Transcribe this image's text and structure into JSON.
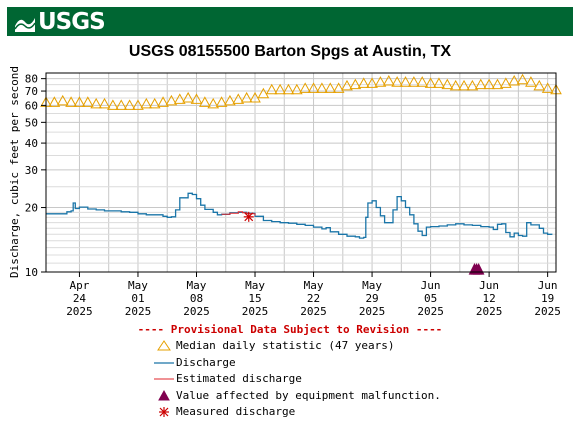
{
  "header": {
    "logo_text": "USGS"
  },
  "chart_data": {
    "type": "line",
    "title": "USGS 08155500 Barton Spgs at Austin, TX",
    "ylabel": "Discharge, cubic feet per second",
    "yscale": "log",
    "ylim": [
      10,
      85
    ],
    "yticks": [
      10,
      20,
      30,
      40,
      50,
      60,
      70,
      80
    ],
    "xlim": [
      "2025-04-20",
      "2025-06-20"
    ],
    "xticks": [
      {
        "date": "2025-04-24",
        "label": [
          "Apr",
          "24",
          "2025"
        ]
      },
      {
        "date": "2025-05-01",
        "label": [
          "May",
          "01",
          "2025"
        ]
      },
      {
        "date": "2025-05-08",
        "label": [
          "May",
          "08",
          "2025"
        ]
      },
      {
        "date": "2025-05-15",
        "label": [
          "May",
          "15",
          "2025"
        ]
      },
      {
        "date": "2025-05-22",
        "label": [
          "May",
          "22",
          "2025"
        ]
      },
      {
        "date": "2025-05-29",
        "label": [
          "May",
          "29",
          "2025"
        ]
      },
      {
        "date": "2025-06-05",
        "label": [
          "Jun",
          "05",
          "2025"
        ]
      },
      {
        "date": "2025-06-12",
        "label": [
          "Jun",
          "12",
          "2025"
        ]
      },
      {
        "date": "2025-06-19",
        "label": [
          "Jun",
          "19",
          "2025"
        ]
      }
    ],
    "grid": true,
    "colors": {
      "median": "#e6a000",
      "discharge": "#1a75a8",
      "estimated": "#e0262b",
      "malfunction": "#800050",
      "measured": "#cc0000"
    },
    "series": [
      {
        "name": "Discharge",
        "points": [
          [
            "2025-04-20",
            18.7
          ],
          [
            "2025-04-22",
            18.7
          ],
          [
            "2025-04-22T12",
            19.1
          ],
          [
            "2025-04-23",
            19.3
          ],
          [
            "2025-04-23T06",
            21.0
          ],
          [
            "2025-04-23T12",
            19.8
          ],
          [
            "2025-04-24",
            20.1
          ],
          [
            "2025-04-25",
            19.7
          ],
          [
            "2025-04-26",
            19.5
          ],
          [
            "2025-04-27",
            19.3
          ],
          [
            "2025-04-28",
            19.3
          ],
          [
            "2025-04-29",
            19.1
          ],
          [
            "2025-04-30",
            19.0
          ],
          [
            "2025-05-01",
            18.7
          ],
          [
            "2025-05-02",
            18.5
          ],
          [
            "2025-05-03",
            18.5
          ],
          [
            "2025-05-04",
            18.2
          ],
          [
            "2025-05-04T12",
            18.0
          ],
          [
            "2025-05-05",
            18.1
          ],
          [
            "2025-05-05T12",
            19.5
          ],
          [
            "2025-05-06",
            22.2
          ],
          [
            "2025-05-07",
            23.3
          ],
          [
            "2025-05-07T12",
            23.0
          ],
          [
            "2025-05-08",
            22.0
          ],
          [
            "2025-05-08T12",
            20.5
          ],
          [
            "2025-05-09",
            19.6
          ],
          [
            "2025-05-10",
            19.0
          ],
          [
            "2025-05-10T12",
            18.5
          ],
          [
            "2025-05-11",
            18.6
          ],
          [
            "2025-05-12",
            18.9
          ],
          [
            "2025-05-13",
            19.0
          ],
          [
            "2025-05-14",
            18.8
          ],
          [
            "2025-05-15",
            18.2
          ],
          [
            "2025-05-16",
            17.4
          ],
          [
            "2025-05-17",
            17.2
          ],
          [
            "2025-05-18",
            17.0
          ],
          [
            "2025-05-19",
            16.9
          ],
          [
            "2025-05-20",
            16.7
          ],
          [
            "2025-05-21",
            16.5
          ],
          [
            "2025-05-22",
            16.2
          ],
          [
            "2025-05-23",
            15.9
          ],
          [
            "2025-05-23T12",
            16.1
          ],
          [
            "2025-05-24",
            15.4
          ],
          [
            "2025-05-25",
            15.0
          ],
          [
            "2025-05-26",
            14.7
          ],
          [
            "2025-05-27",
            14.6
          ],
          [
            "2025-05-27T12",
            14.4
          ],
          [
            "2025-05-28",
            14.5
          ],
          [
            "2025-05-28T06",
            18.0
          ],
          [
            "2025-05-28T12",
            21.0
          ],
          [
            "2025-05-29",
            21.5
          ],
          [
            "2025-05-29T12",
            20.0
          ],
          [
            "2025-05-30",
            18.3
          ],
          [
            "2025-05-30T12",
            17.0
          ],
          [
            "2025-05-31",
            17.0
          ],
          [
            "2025-05-31T12",
            19.5
          ],
          [
            "2025-06-01",
            22.5
          ],
          [
            "2025-06-01T12",
            21.5
          ],
          [
            "2025-06-02",
            20.0
          ],
          [
            "2025-06-02T12",
            18.5
          ],
          [
            "2025-06-03",
            16.8
          ],
          [
            "2025-06-03T12",
            15.5
          ],
          [
            "2025-06-04",
            14.8
          ],
          [
            "2025-06-04T12",
            16.2
          ],
          [
            "2025-06-05",
            16.3
          ],
          [
            "2025-06-06",
            16.4
          ],
          [
            "2025-06-07",
            16.6
          ],
          [
            "2025-06-08",
            16.8
          ],
          [
            "2025-06-09",
            16.6
          ],
          [
            "2025-06-10",
            16.5
          ],
          [
            "2025-06-11",
            16.3
          ],
          [
            "2025-06-12",
            16.2
          ],
          [
            "2025-06-12T12",
            15.8
          ],
          [
            "2025-06-13",
            16.7
          ],
          [
            "2025-06-13T12",
            16.8
          ],
          [
            "2025-06-14",
            15.3
          ],
          [
            "2025-06-14T12",
            14.6
          ],
          [
            "2025-06-15",
            15.2
          ],
          [
            "2025-06-15T12",
            14.8
          ],
          [
            "2025-06-16",
            14.7
          ],
          [
            "2025-06-16T12",
            17.0
          ],
          [
            "2025-06-17",
            16.6
          ],
          [
            "2025-06-18",
            16.0
          ],
          [
            "2025-06-18T12",
            15.2
          ],
          [
            "2025-06-19",
            15.0
          ],
          [
            "2025-06-19T12",
            14.9
          ]
        ]
      },
      {
        "name": "Estimated discharge",
        "points": [
          [
            "2025-05-11",
            18.6
          ],
          [
            "2025-05-12",
            18.8
          ],
          [
            "2025-05-13",
            19.1
          ],
          [
            "2025-05-13T12",
            18.9
          ],
          [
            "2025-05-14",
            18.7
          ],
          [
            "2025-05-15",
            18.3
          ]
        ]
      },
      {
        "name": "Median daily statistic (47 years)",
        "values": [
          [
            "2025-04-20",
            62
          ],
          [
            "2025-04-21",
            62
          ],
          [
            "2025-04-22",
            63
          ],
          [
            "2025-04-23",
            62
          ],
          [
            "2025-04-24",
            62
          ],
          [
            "2025-04-25",
            62
          ],
          [
            "2025-04-26",
            61
          ],
          [
            "2025-04-27",
            61
          ],
          [
            "2025-04-28",
            60
          ],
          [
            "2025-04-29",
            60
          ],
          [
            "2025-04-30",
            60
          ],
          [
            "2025-05-01",
            60
          ],
          [
            "2025-05-02",
            61
          ],
          [
            "2025-05-03",
            61
          ],
          [
            "2025-05-04",
            62
          ],
          [
            "2025-05-05",
            63
          ],
          [
            "2025-05-06",
            64
          ],
          [
            "2025-05-07",
            65
          ],
          [
            "2025-05-08",
            64
          ],
          [
            "2025-05-09",
            62
          ],
          [
            "2025-05-10",
            61
          ],
          [
            "2025-05-11",
            62
          ],
          [
            "2025-05-12",
            63
          ],
          [
            "2025-05-13",
            64
          ],
          [
            "2025-05-14",
            65
          ],
          [
            "2025-05-15",
            65
          ],
          [
            "2025-05-16",
            68
          ],
          [
            "2025-05-17",
            71
          ],
          [
            "2025-05-18",
            71
          ],
          [
            "2025-05-19",
            71
          ],
          [
            "2025-05-20",
            71
          ],
          [
            "2025-05-21",
            72
          ],
          [
            "2025-05-22",
            72
          ],
          [
            "2025-05-23",
            72
          ],
          [
            "2025-05-24",
            72
          ],
          [
            "2025-05-25",
            72
          ],
          [
            "2025-05-26",
            74
          ],
          [
            "2025-05-27",
            75
          ],
          [
            "2025-05-28",
            76
          ],
          [
            "2025-05-29",
            76
          ],
          [
            "2025-05-30",
            77
          ],
          [
            "2025-05-31",
            78
          ],
          [
            "2025-06-01",
            77
          ],
          [
            "2025-06-02",
            77
          ],
          [
            "2025-06-03",
            77
          ],
          [
            "2025-06-04",
            77
          ],
          [
            "2025-06-05",
            76
          ],
          [
            "2025-06-06",
            76
          ],
          [
            "2025-06-07",
            75
          ],
          [
            "2025-06-08",
            74
          ],
          [
            "2025-06-09",
            74
          ],
          [
            "2025-06-10",
            74
          ],
          [
            "2025-06-11",
            75
          ],
          [
            "2025-06-12",
            75
          ],
          [
            "2025-06-13",
            75
          ],
          [
            "2025-06-14",
            76
          ],
          [
            "2025-06-15",
            78
          ],
          [
            "2025-06-16",
            79
          ],
          [
            "2025-06-17",
            77
          ],
          [
            "2025-06-18",
            74
          ],
          [
            "2025-06-19",
            72
          ],
          [
            "2025-06-20",
            71
          ]
        ]
      },
      {
        "name": "Measured discharge",
        "points": [
          [
            "2025-05-14T06",
            18.1
          ]
        ]
      },
      {
        "name": "Value affected by equipment malfunction.",
        "points": [
          [
            "2025-06-10T06",
            10.2
          ],
          [
            "2025-06-10T12",
            10.2
          ],
          [
            "2025-06-10T18",
            10.2
          ]
        ]
      }
    ],
    "legend": [
      {
        "label": "Median daily statistic (47 years)",
        "symbol": "median"
      },
      {
        "label": "Discharge",
        "symbol": "discharge"
      },
      {
        "label": "Estimated discharge",
        "symbol": "estimated"
      },
      {
        "label": "Value affected by equipment malfunction.",
        "symbol": "malfunction"
      },
      {
        "label": "Measured discharge",
        "symbol": "measured"
      }
    ],
    "notice": "---- Provisional Data Subject to Revision ----"
  }
}
